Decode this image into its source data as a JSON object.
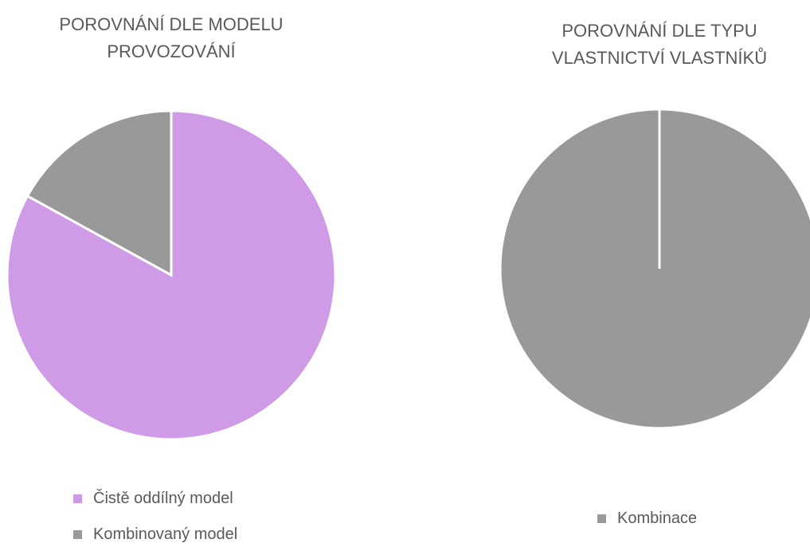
{
  "chart_data": [
    {
      "type": "pie",
      "title": "POROVNÁNÍ DLE MODELU PROVOZOVÁNÍ",
      "categories": [
        "Čistě oddílný model",
        "Kombinovaný model"
      ],
      "values": [
        83,
        17
      ],
      "colors": [
        "#cf9be6",
        "#999999"
      ]
    },
    {
      "type": "pie",
      "title": "POROVNÁNÍ DLE TYPU VLASTNICTVÍ VLASTNÍKŮ",
      "categories": [
        "Kombinace"
      ],
      "values": [
        100
      ],
      "colors": [
        "#999999"
      ]
    }
  ]
}
